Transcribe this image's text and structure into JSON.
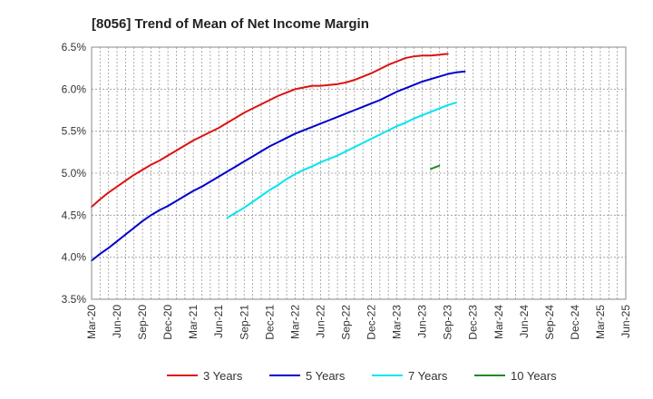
{
  "chart_data": {
    "type": "line",
    "title": "[8056]  Trend of Mean of Net Income Margin",
    "xlabel": "",
    "ylabel": "",
    "ylim": [
      3.5,
      6.5
    ],
    "y_ticks": [
      "3.5%",
      "4.0%",
      "4.5%",
      "5.0%",
      "5.5%",
      "6.0%",
      "6.5%"
    ],
    "y_tick_values": [
      3.5,
      4.0,
      4.5,
      5.0,
      5.5,
      6.0,
      6.5
    ],
    "x_ticks": [
      "Mar-20",
      "Jun-20",
      "Sep-20",
      "Dec-20",
      "Mar-21",
      "Jun-21",
      "Sep-21",
      "Dec-21",
      "Mar-22",
      "Jun-22",
      "Sep-22",
      "Dec-22",
      "Mar-23",
      "Jun-23",
      "Sep-23",
      "Dec-23",
      "Mar-24",
      "Jun-24",
      "Sep-24",
      "Dec-24",
      "Mar-25",
      "Jun-25"
    ],
    "grid": true,
    "legend_position": "bottom",
    "series": [
      {
        "name": "3 Years",
        "color": "#dd1111",
        "start_index": 0,
        "values": [
          4.6,
          4.69,
          4.77,
          4.84,
          4.91,
          4.98,
          5.04,
          5.1,
          5.15,
          5.21,
          5.27,
          5.33,
          5.39,
          5.44,
          5.49,
          5.54,
          5.6,
          5.66,
          5.72,
          5.77,
          5.82,
          5.87,
          5.92,
          5.96,
          6.0,
          6.02,
          6.04,
          6.04,
          6.05,
          6.06,
          6.08,
          6.11,
          6.15,
          6.19,
          6.24,
          6.29,
          6.33,
          6.37,
          6.39,
          6.4,
          6.4,
          6.41,
          6.42
        ]
      },
      {
        "name": "5 Years",
        "color": "#0000cc",
        "start_index": 0,
        "values": [
          3.96,
          4.04,
          4.11,
          4.19,
          4.27,
          4.35,
          4.43,
          4.5,
          4.56,
          4.61,
          4.67,
          4.73,
          4.79,
          4.84,
          4.9,
          4.96,
          5.02,
          5.08,
          5.14,
          5.2,
          5.26,
          5.32,
          5.37,
          5.42,
          5.47,
          5.51,
          5.55,
          5.59,
          5.63,
          5.67,
          5.71,
          5.75,
          5.79,
          5.83,
          5.87,
          5.92,
          5.97,
          6.01,
          6.05,
          6.09,
          6.12,
          6.15,
          6.18,
          6.2,
          6.21
        ]
      },
      {
        "name": "7 Years",
        "color": "#00e5ee",
        "start_index": 16,
        "values": [
          4.47,
          4.53,
          4.59,
          4.66,
          4.73,
          4.8,
          4.86,
          4.93,
          4.99,
          5.04,
          5.08,
          5.13,
          5.17,
          5.21,
          5.26,
          5.31,
          5.36,
          5.41,
          5.46,
          5.51,
          5.56,
          5.6,
          5.65,
          5.69,
          5.73,
          5.77,
          5.81,
          5.84
        ]
      },
      {
        "name": "10 Years",
        "color": "#228822",
        "start_index": 40,
        "values": [
          5.05,
          5.09
        ]
      }
    ]
  }
}
